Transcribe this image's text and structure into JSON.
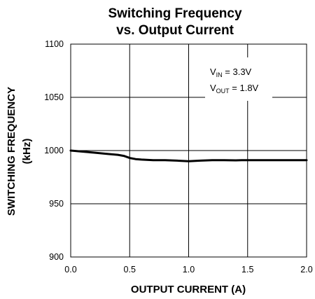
{
  "chart_data": {
    "type": "line",
    "title": "Switching Frequency",
    "subtitle": "vs. Output Current",
    "xlabel": "OUTPUT CURRENT (A)",
    "ylabel_line1": "SWITCHING FREQUENCY",
    "ylabel_line2": "(kHz)",
    "xlim": [
      0.0,
      2.0
    ],
    "ylim": [
      900,
      1100
    ],
    "x_ticks": [
      "0.0",
      "0.5",
      "1.0",
      "1.5",
      "2.0"
    ],
    "y_ticks": [
      "900",
      "950",
      "1000",
      "1050",
      "1100"
    ],
    "x_tick_values": [
      0.0,
      0.5,
      1.0,
      1.5,
      2.0
    ],
    "y_tick_values": [
      900,
      950,
      1000,
      1050,
      1100
    ],
    "grid": true,
    "annotation": {
      "vin_main": "V",
      "vin_sub": "IN",
      "vin_value": " = 3.3V",
      "vout_main": "V",
      "vout_sub": "OUT",
      "vout_value": " = 1.8V"
    },
    "series": [
      {
        "x": [
          0.0,
          0.1,
          0.2,
          0.3,
          0.4,
          0.45,
          0.5,
          0.55,
          0.6,
          0.7,
          0.8,
          0.9,
          1.0,
          1.1,
          1.2,
          1.3,
          1.4,
          1.45,
          1.5,
          1.6,
          1.7,
          1.8,
          1.9,
          2.0
        ],
        "y": [
          1000,
          999,
          998,
          997,
          996,
          995,
          993,
          992,
          991.5,
          991,
          991,
          990.5,
          990,
          990.5,
          991,
          991,
          990.8,
          991,
          991,
          991,
          991,
          991,
          991,
          991
        ]
      }
    ],
    "line_color": "#000000"
  }
}
